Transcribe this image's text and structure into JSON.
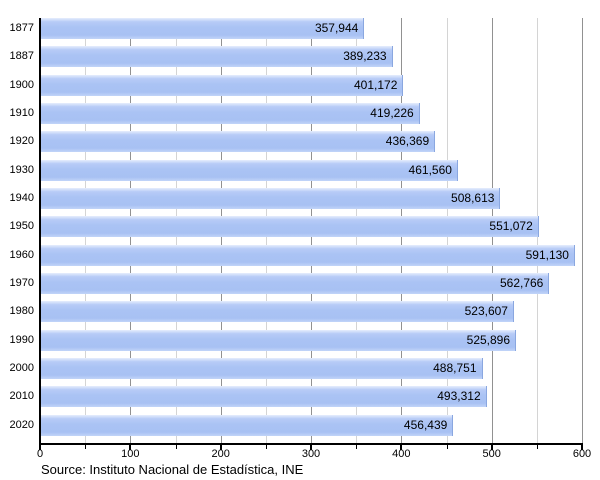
{
  "chart_data": {
    "type": "bar",
    "orientation": "horizontal",
    "title": "",
    "categories": [
      "1877",
      "1887",
      "1900",
      "1910",
      "1920",
      "1930",
      "1940",
      "1950",
      "1960",
      "1970",
      "1980",
      "1990",
      "2000",
      "2010",
      "2020"
    ],
    "values": [
      357944,
      389233,
      401172,
      419226,
      436369,
      461560,
      508613,
      551072,
      591130,
      562766,
      523607,
      525896,
      488751,
      493312,
      456439
    ],
    "value_labels": [
      "357,944",
      "389,233",
      "401,172",
      "419,226",
      "436,369",
      "461,560",
      "508,613",
      "551,072",
      "591,130",
      "562,766",
      "523,607",
      "525,896",
      "488,751",
      "493,312",
      "456,439"
    ],
    "x_axis": {
      "tick_labels": [
        "0",
        "100",
        "200",
        "300",
        "400",
        "500",
        "600"
      ],
      "major_step": 100,
      "minor_step": 50,
      "range_thousands": [
        0,
        600
      ],
      "unit": "thousands"
    },
    "grid": true,
    "legend_position": "none"
  },
  "footer": {
    "source": "Source: Instituto Nacional de Estadística, INE"
  },
  "colors": {
    "bar_fill": "#aac3f4",
    "bar_edge": "#8aa7e0",
    "grid_major": "#919191",
    "grid_minor": "#d4d4d4",
    "axis": "#000000",
    "text": "#000000"
  }
}
